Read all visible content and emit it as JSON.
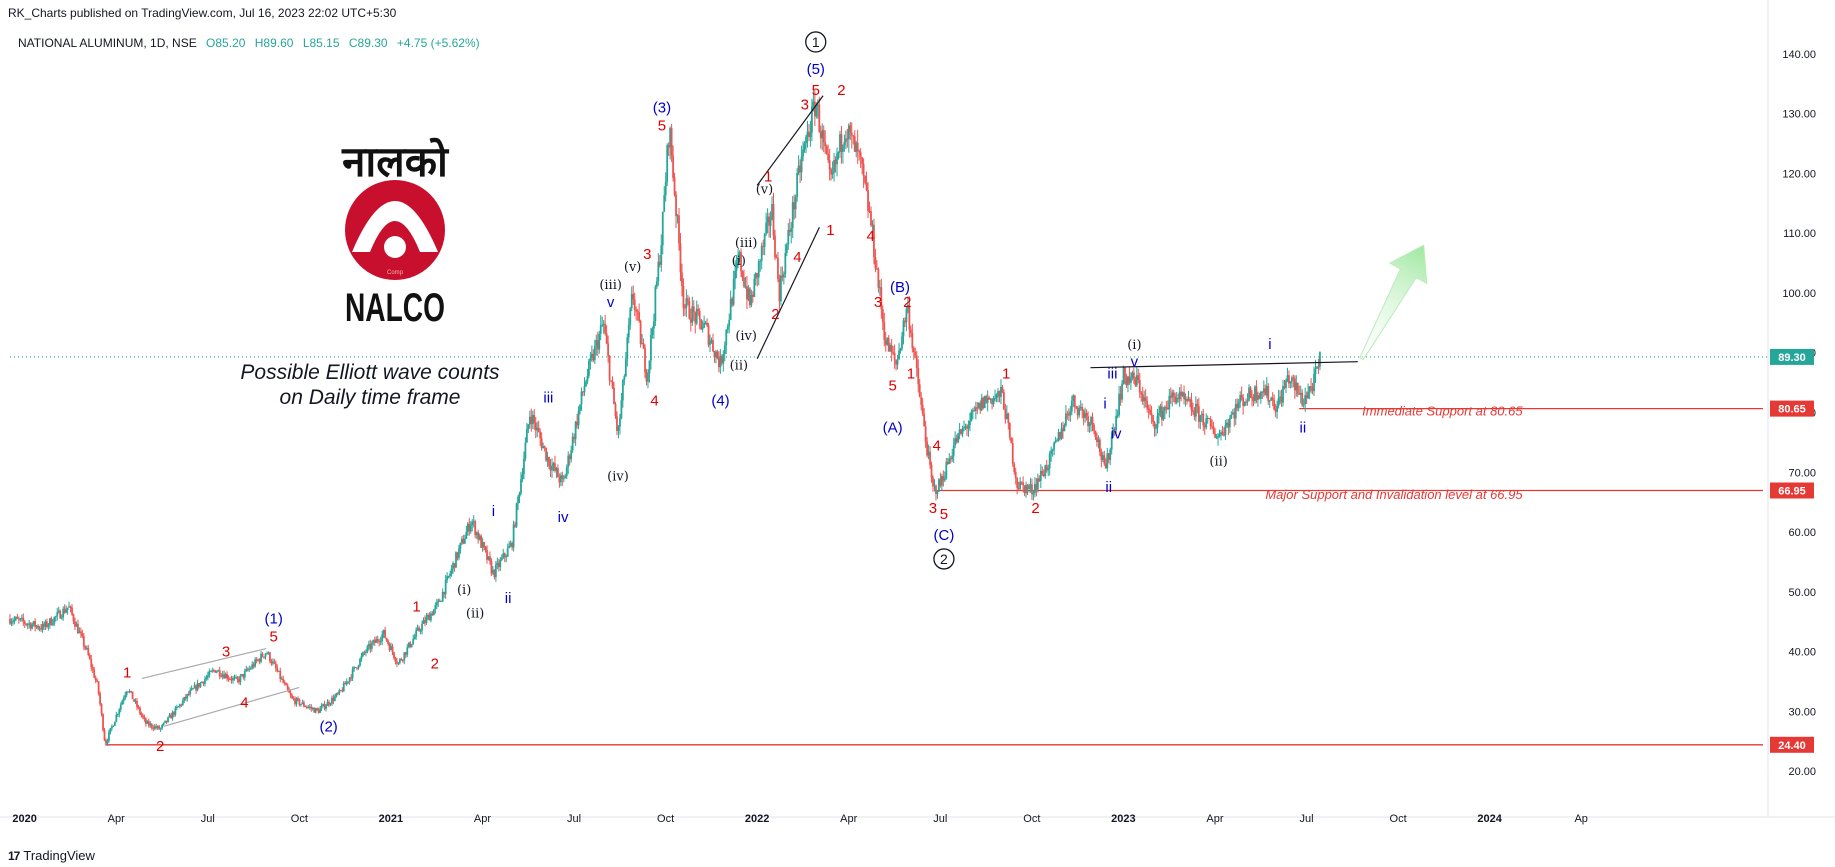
{
  "header": {
    "published": "RK_Charts published on TradingView.com, Jul 16, 2023 22:02 UTC+5:30"
  },
  "symbol_line": {
    "name": "NATIONAL ALUMINUM, 1D, NSE",
    "open": "O85.20",
    "high": "H89.60",
    "low": "L85.15",
    "close": "C89.30",
    "change": "+4.75 (+5.62%)"
  },
  "footer": {
    "brand": "TradingView",
    "logo_glyph": "17"
  },
  "logo": {
    "devanagari": "नालको",
    "brand": "NALCO",
    "inner_text": "Comp"
  },
  "colors": {
    "up": "#26a69a",
    "down": "#ef5350",
    "red_label": "#e00000",
    "blue_label": "#0000cc",
    "black_label": "#131722",
    "support_line": "#e53935",
    "price_line": "#26a69a",
    "axis_text": "#131722",
    "arrow_fill": "#9ee79e"
  },
  "chart_data": {
    "type": "candlestick",
    "title": "NATIONAL ALUMINUM, 1D, NSE",
    "annotation": [
      "Possible Elliott wave counts",
      "on Daily time frame"
    ],
    "ylim": [
      16,
      144
    ],
    "y_ticks": [
      20,
      30,
      40,
      50,
      60,
      70,
      80,
      90,
      100,
      110,
      120,
      130,
      140
    ],
    "y_tick_labels": [
      "20.00",
      "30.00",
      "40.00",
      "50.00",
      "60.00",
      "70.00",
      "80.00",
      "90.00",
      "100.00",
      "110.00",
      "120.00",
      "130.00",
      "140.00"
    ],
    "xlim": [
      2019.96,
      2024.76
    ],
    "x_ticks": [
      {
        "t": 2020.0,
        "label": "2020",
        "bold": true
      },
      {
        "t": 2020.25,
        "label": "Apr",
        "bold": false
      },
      {
        "t": 2020.5,
        "label": "Jul",
        "bold": false
      },
      {
        "t": 2020.75,
        "label": "Oct",
        "bold": false
      },
      {
        "t": 2021.0,
        "label": "2021",
        "bold": true
      },
      {
        "t": 2021.25,
        "label": "Apr",
        "bold": false
      },
      {
        "t": 2021.5,
        "label": "Jul",
        "bold": false
      },
      {
        "t": 2021.75,
        "label": "Oct",
        "bold": false
      },
      {
        "t": 2022.0,
        "label": "2022",
        "bold": true
      },
      {
        "t": 2022.25,
        "label": "Apr",
        "bold": false
      },
      {
        "t": 2022.5,
        "label": "Jul",
        "bold": false
      },
      {
        "t": 2022.75,
        "label": "Oct",
        "bold": false
      },
      {
        "t": 2023.0,
        "label": "2023",
        "bold": true
      },
      {
        "t": 2023.25,
        "label": "Apr",
        "bold": false
      },
      {
        "t": 2023.5,
        "label": "Jul",
        "bold": false
      },
      {
        "t": 2023.75,
        "label": "Oct",
        "bold": false
      },
      {
        "t": 2024.0,
        "label": "2024",
        "bold": true
      },
      {
        "t": 2024.25,
        "label": "Ap",
        "bold": false
      }
    ],
    "price_path": [
      [
        2019.96,
        45.5
      ],
      [
        2020.05,
        44
      ],
      [
        2020.12,
        47.5
      ],
      [
        2020.17,
        40
      ],
      [
        2020.2,
        34
      ],
      [
        2020.22,
        24.5
      ],
      [
        2020.28,
        34
      ],
      [
        2020.33,
        28
      ],
      [
        2020.37,
        27
      ],
      [
        2020.45,
        33
      ],
      [
        2020.52,
        37
      ],
      [
        2020.58,
        35
      ],
      [
        2020.66,
        40
      ],
      [
        2020.73,
        32
      ],
      [
        2020.8,
        30
      ],
      [
        2020.86,
        33
      ],
      [
        2020.93,
        40
      ],
      [
        2020.98,
        43
      ],
      [
        2021.02,
        38
      ],
      [
        2021.08,
        44
      ],
      [
        2021.13,
        48
      ],
      [
        2021.18,
        56
      ],
      [
        2021.22,
        62
      ],
      [
        2021.28,
        53
      ],
      [
        2021.33,
        58
      ],
      [
        2021.38,
        80
      ],
      [
        2021.43,
        72
      ],
      [
        2021.47,
        68
      ],
      [
        2021.53,
        85
      ],
      [
        2021.58,
        95
      ],
      [
        2021.62,
        76
      ],
      [
        2021.66,
        100
      ],
      [
        2021.7,
        86
      ],
      [
        2021.74,
        110
      ],
      [
        2021.76,
        128
      ],
      [
        2021.8,
        98
      ],
      [
        2021.86,
        94
      ],
      [
        2021.9,
        88
      ],
      [
        2021.95,
        106
      ],
      [
        2021.98,
        98
      ],
      [
        2022.04,
        114
      ],
      [
        2022.06,
        100
      ],
      [
        2022.12,
        122
      ],
      [
        2022.16,
        132
      ],
      [
        2022.2,
        118
      ],
      [
        2022.24,
        128
      ],
      [
        2022.28,
        122
      ],
      [
        2022.31,
        112
      ],
      [
        2022.35,
        92
      ],
      [
        2022.38,
        88
      ],
      [
        2022.41,
        98
      ],
      [
        2022.45,
        80
      ],
      [
        2022.48,
        67
      ],
      [
        2022.5,
        68
      ],
      [
        2022.54,
        75
      ],
      [
        2022.62,
        82
      ],
      [
        2022.67,
        83
      ],
      [
        2022.71,
        68
      ],
      [
        2022.75,
        67
      ],
      [
        2022.8,
        72
      ],
      [
        2022.86,
        82
      ],
      [
        2022.92,
        78
      ],
      [
        2022.95,
        70
      ],
      [
        2023.0,
        86
      ],
      [
        2023.04,
        85
      ],
      [
        2023.08,
        78
      ],
      [
        2023.14,
        83
      ],
      [
        2023.2,
        80
      ],
      [
        2023.26,
        76
      ],
      [
        2023.32,
        82
      ],
      [
        2023.38,
        84
      ],
      [
        2023.42,
        81
      ],
      [
        2023.45,
        86
      ],
      [
        2023.49,
        82
      ],
      [
        2023.52,
        85
      ],
      [
        2023.54,
        89.3
      ]
    ],
    "last_price": 89.3,
    "price_labels": [
      {
        "value": 89.3,
        "text": "89.30",
        "color": "#26a69a"
      },
      {
        "value": 80.65,
        "text": "80.65",
        "color": "#e53935"
      },
      {
        "value": 66.95,
        "text": "66.95",
        "color": "#e53935"
      },
      {
        "value": 24.4,
        "text": "24.40",
        "color": "#e53935"
      }
    ],
    "hlines": [
      {
        "value": 24.4,
        "t0": 2020.22,
        "t1": 2024.76
      },
      {
        "value": 66.95,
        "t0": 2022.49,
        "t1": 2024.76
      },
      {
        "value": 80.65,
        "t0": 2023.48,
        "t1": 2024.76
      }
    ],
    "support_texts": [
      {
        "text": "Immediate Support at 80.65",
        "t": 2024.09,
        "v": 79.5
      },
      {
        "text": "Major Support and Invalidation level at 66.95",
        "t": 2024.09,
        "v": 65.5
      }
    ],
    "trendlines": [
      {
        "p1": [
          2020.32,
          35.5
        ],
        "p2": [
          2020.66,
          40.5
        ],
        "color": "#aaaaaa"
      },
      {
        "p1": [
          2020.38,
          27.5
        ],
        "p2": [
          2020.75,
          34
        ],
        "color": "#aaaaaa"
      },
      {
        "p1": [
          2022.0,
          118
        ],
        "p2": [
          2022.18,
          133
        ],
        "color": "#131722"
      },
      {
        "p1": [
          2022.0,
          89
        ],
        "p2": [
          2022.17,
          111
        ],
        "color": "#131722"
      },
      {
        "p1": [
          2022.91,
          87.5
        ],
        "p2": [
          2023.64,
          88.5
        ],
        "color": "#131722"
      }
    ],
    "green_arrow": {
      "tail": [
        2023.65,
        89
      ],
      "head": [
        2023.82,
        108
      ]
    },
    "wave_labels": [
      {
        "t": 2020.28,
        "v": 36.5,
        "text": "1",
        "c": "red"
      },
      {
        "t": 2020.37,
        "v": 24.2,
        "text": "2",
        "c": "red"
      },
      {
        "t": 2020.55,
        "v": 40,
        "text": "3",
        "c": "red"
      },
      {
        "t": 2020.6,
        "v": 31.5,
        "text": "4",
        "c": "red"
      },
      {
        "t": 2020.68,
        "v": 42.5,
        "text": "5",
        "c": "red"
      },
      {
        "t": 2020.68,
        "v": 45.5,
        "text": "(1)",
        "c": "blue"
      },
      {
        "t": 2020.83,
        "v": 27.5,
        "text": "(2)",
        "c": "blue"
      },
      {
        "t": 2021.07,
        "v": 47.5,
        "text": "1",
        "c": "red"
      },
      {
        "t": 2021.12,
        "v": 38,
        "text": "2",
        "c": "red"
      },
      {
        "t": 2021.2,
        "v": 50.5,
        "text": "(i)",
        "c": "black"
      },
      {
        "t": 2021.23,
        "v": 46.5,
        "text": "(ii)",
        "c": "black"
      },
      {
        "t": 2021.28,
        "v": 63.5,
        "text": "i",
        "c": "blue"
      },
      {
        "t": 2021.32,
        "v": 49,
        "text": "ii",
        "c": "blue"
      },
      {
        "t": 2021.43,
        "v": 82.5,
        "text": "iii",
        "c": "blue"
      },
      {
        "t": 2021.47,
        "v": 62.5,
        "text": "iv",
        "c": "blue"
      },
      {
        "t": 2021.6,
        "v": 98.5,
        "text": "v",
        "c": "blue"
      },
      {
        "t": 2021.6,
        "v": 101.5,
        "text": "(iii)",
        "c": "black"
      },
      {
        "t": 2021.62,
        "v": 69.5,
        "text": "(iv)",
        "c": "black"
      },
      {
        "t": 2021.66,
        "v": 104.5,
        "text": "(v)",
        "c": "black"
      },
      {
        "t": 2021.7,
        "v": 106.5,
        "text": "3",
        "c": "red"
      },
      {
        "t": 2021.72,
        "v": 82,
        "text": "4",
        "c": "red"
      },
      {
        "t": 2021.74,
        "v": 128,
        "text": "5",
        "c": "red"
      },
      {
        "t": 2021.74,
        "v": 131,
        "text": "(3)",
        "c": "blue"
      },
      {
        "t": 2021.9,
        "v": 82,
        "text": "(4)",
        "c": "blue"
      },
      {
        "t": 2021.95,
        "v": 88,
        "text": "(ii)",
        "c": "black"
      },
      {
        "t": 2021.97,
        "v": 93,
        "text": "(iv)",
        "c": "black"
      },
      {
        "t": 2021.95,
        "v": 105.5,
        "text": "(i)",
        "c": "black"
      },
      {
        "t": 2021.97,
        "v": 108.5,
        "text": "(iii)",
        "c": "black"
      },
      {
        "t": 2022.02,
        "v": 117.5,
        "text": "(v)",
        "c": "black"
      },
      {
        "t": 2022.03,
        "v": 119.5,
        "text": "1",
        "c": "red"
      },
      {
        "t": 2022.05,
        "v": 96.5,
        "text": "2",
        "c": "red"
      },
      {
        "t": 2022.13,
        "v": 131.5,
        "text": "3",
        "c": "red"
      },
      {
        "t": 2022.11,
        "v": 106,
        "text": "4",
        "c": "red"
      },
      {
        "t": 2022.16,
        "v": 134,
        "text": "5",
        "c": "red"
      },
      {
        "t": 2022.16,
        "v": 137.5,
        "text": "(5)",
        "c": "blue"
      },
      {
        "t": 2022.16,
        "v": 142,
        "text": "1",
        "c": "circle"
      },
      {
        "t": 2022.2,
        "v": 110.5,
        "text": "1",
        "c": "red"
      },
      {
        "t": 2022.23,
        "v": 134,
        "text": "2",
        "c": "red"
      },
      {
        "t": 2022.31,
        "v": 109.5,
        "text": "4",
        "c": "red"
      },
      {
        "t": 2022.33,
        "v": 98.5,
        "text": "3",
        "c": "red"
      },
      {
        "t": 2022.37,
        "v": 84.5,
        "text": "5",
        "c": "red"
      },
      {
        "t": 2022.37,
        "v": 77.5,
        "text": "(A)",
        "c": "blue"
      },
      {
        "t": 2022.39,
        "v": 101,
        "text": "(B)",
        "c": "blue"
      },
      {
        "t": 2022.41,
        "v": 98.5,
        "text": "2",
        "c": "red"
      },
      {
        "t": 2022.42,
        "v": 86.5,
        "text": "1",
        "c": "red"
      },
      {
        "t": 2022.49,
        "v": 74.5,
        "text": "4",
        "c": "red"
      },
      {
        "t": 2022.48,
        "v": 64,
        "text": "3",
        "c": "red"
      },
      {
        "t": 2022.51,
        "v": 63,
        "text": "5",
        "c": "red"
      },
      {
        "t": 2022.51,
        "v": 59.5,
        "text": "(C)",
        "c": "blue"
      },
      {
        "t": 2022.51,
        "v": 55.5,
        "text": "2",
        "c": "circle"
      },
      {
        "t": 2022.68,
        "v": 86.5,
        "text": "1",
        "c": "red"
      },
      {
        "t": 2022.76,
        "v": 64,
        "text": "2",
        "c": "red"
      },
      {
        "t": 2022.95,
        "v": 81.5,
        "text": "i",
        "c": "blue"
      },
      {
        "t": 2022.96,
        "v": 67.5,
        "text": "ii",
        "c": "blue"
      },
      {
        "t": 2022.97,
        "v": 86.5,
        "text": "iii",
        "c": "blue"
      },
      {
        "t": 2022.98,
        "v": 76.5,
        "text": "iv",
        "c": "blue"
      },
      {
        "t": 2023.03,
        "v": 88.5,
        "text": "v",
        "c": "blue"
      },
      {
        "t": 2023.03,
        "v": 91.5,
        "text": "(i)",
        "c": "black"
      },
      {
        "t": 2023.26,
        "v": 72,
        "text": "(ii)",
        "c": "black"
      },
      {
        "t": 2023.4,
        "v": 91.5,
        "text": "i",
        "c": "blue"
      },
      {
        "t": 2023.49,
        "v": 77.5,
        "text": "ii",
        "c": "blue"
      }
    ]
  }
}
